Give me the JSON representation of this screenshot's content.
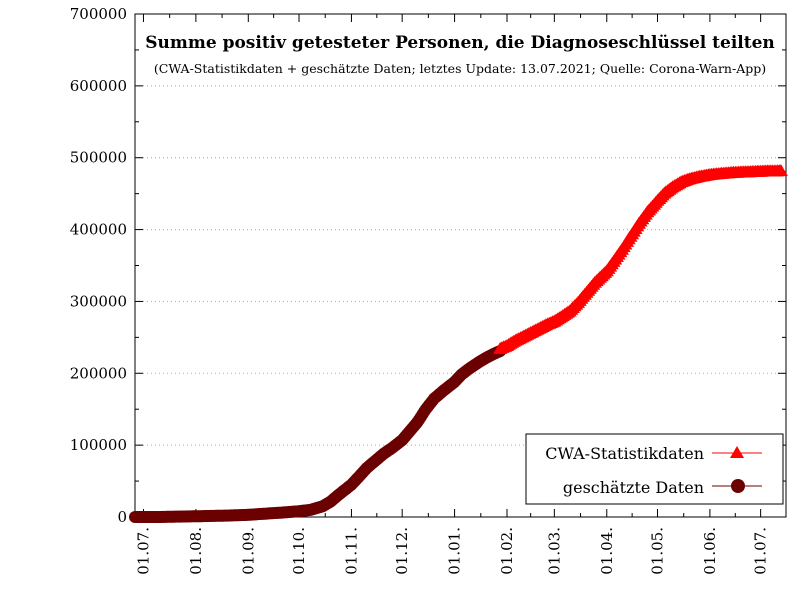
{
  "chart_data": {
    "type": "line",
    "title": "Summe positiv getesteter Personen, die Diagnoseschlüssel teilten",
    "subtitle": "(CWA-Statistikdaten + geschätzte Daten; letztes Update: 13.07.2021; Quelle: Corona-Warn-App)",
    "xlabel": "",
    "ylabel": "",
    "ylim": [
      0,
      700000
    ],
    "yticks": [
      0,
      100000,
      200000,
      300000,
      400000,
      500000,
      600000,
      700000
    ],
    "xlim": [
      "2020-06-26",
      "2021-07-16"
    ],
    "xticks": [
      {
        "date": "2020-07-01",
        "label": "01.07."
      },
      {
        "date": "2020-08-01",
        "label": "01.08."
      },
      {
        "date": "2020-09-01",
        "label": "01.09."
      },
      {
        "date": "2020-10-01",
        "label": "01.10."
      },
      {
        "date": "2020-11-01",
        "label": "01.11."
      },
      {
        "date": "2020-12-01",
        "label": "01.12."
      },
      {
        "date": "2021-01-01",
        "label": "01.01."
      },
      {
        "date": "2021-02-01",
        "label": "01.02."
      },
      {
        "date": "2021-03-01",
        "label": "01.03."
      },
      {
        "date": "2021-04-01",
        "label": "01.04."
      },
      {
        "date": "2021-05-01",
        "label": "01.05."
      },
      {
        "date": "2021-06-01",
        "label": "01.06."
      },
      {
        "date": "2021-07-01",
        "label": "01.07."
      }
    ],
    "grid": "horizontal dotted",
    "legend_position": "bottom-right",
    "series": [
      {
        "name": "CWA-Statistikdaten",
        "color": "#ff0000",
        "marker": "triangle",
        "points": [
          [
            "2021-01-28",
            234000
          ],
          [
            "2021-02-01",
            238000
          ],
          [
            "2021-02-05",
            244000
          ],
          [
            "2021-02-10",
            250000
          ],
          [
            "2021-02-15",
            256000
          ],
          [
            "2021-02-20",
            262000
          ],
          [
            "2021-02-25",
            268000
          ],
          [
            "2021-03-01",
            272000
          ],
          [
            "2021-03-05",
            278000
          ],
          [
            "2021-03-10",
            286000
          ],
          [
            "2021-03-15",
            298000
          ],
          [
            "2021-03-20",
            312000
          ],
          [
            "2021-03-25",
            326000
          ],
          [
            "2021-04-01",
            342000
          ],
          [
            "2021-04-05",
            355000
          ],
          [
            "2021-04-10",
            372000
          ],
          [
            "2021-04-15",
            390000
          ],
          [
            "2021-04-20",
            408000
          ],
          [
            "2021-04-25",
            424000
          ],
          [
            "2021-05-01",
            440000
          ],
          [
            "2021-05-05",
            450000
          ],
          [
            "2021-05-10",
            459000
          ],
          [
            "2021-05-15",
            466000
          ],
          [
            "2021-05-20",
            470000
          ],
          [
            "2021-05-25",
            473000
          ],
          [
            "2021-06-01",
            476000
          ],
          [
            "2021-06-05",
            477000
          ],
          [
            "2021-06-10",
            478000
          ],
          [
            "2021-06-15",
            479000
          ],
          [
            "2021-06-20",
            479500
          ],
          [
            "2021-06-25",
            480000
          ],
          [
            "2021-07-01",
            480500
          ],
          [
            "2021-07-05",
            481000
          ],
          [
            "2021-07-10",
            481000
          ],
          [
            "2021-07-13",
            481500
          ]
        ]
      },
      {
        "name": "geschätzte Daten",
        "color": "#6b0000",
        "marker": "circle",
        "points": [
          [
            "2020-06-26",
            0
          ],
          [
            "2020-07-01",
            0
          ],
          [
            "2020-07-10",
            0
          ],
          [
            "2020-07-20",
            500
          ],
          [
            "2020-08-01",
            1000
          ],
          [
            "2020-08-10",
            1500
          ],
          [
            "2020-08-20",
            2000
          ],
          [
            "2020-09-01",
            3000
          ],
          [
            "2020-09-10",
            4500
          ],
          [
            "2020-09-20",
            6000
          ],
          [
            "2020-10-01",
            8000
          ],
          [
            "2020-10-08",
            10000
          ],
          [
            "2020-10-15",
            15000
          ],
          [
            "2020-10-20",
            22000
          ],
          [
            "2020-10-25",
            32000
          ],
          [
            "2020-11-01",
            45000
          ],
          [
            "2020-11-05",
            55000
          ],
          [
            "2020-11-10",
            68000
          ],
          [
            "2020-11-15",
            78000
          ],
          [
            "2020-11-20",
            88000
          ],
          [
            "2020-11-25",
            96000
          ],
          [
            "2020-12-01",
            107000
          ],
          [
            "2020-12-05",
            118000
          ],
          [
            "2020-12-10",
            132000
          ],
          [
            "2020-12-15",
            150000
          ],
          [
            "2020-12-20",
            165000
          ],
          [
            "2020-12-25",
            175000
          ],
          [
            "2021-01-01",
            188000
          ],
          [
            "2021-01-05",
            198000
          ],
          [
            "2021-01-10",
            207000
          ],
          [
            "2021-01-15",
            215000
          ],
          [
            "2021-01-20",
            222000
          ],
          [
            "2021-01-25",
            228000
          ],
          [
            "2021-01-28",
            231000
          ]
        ]
      }
    ]
  }
}
